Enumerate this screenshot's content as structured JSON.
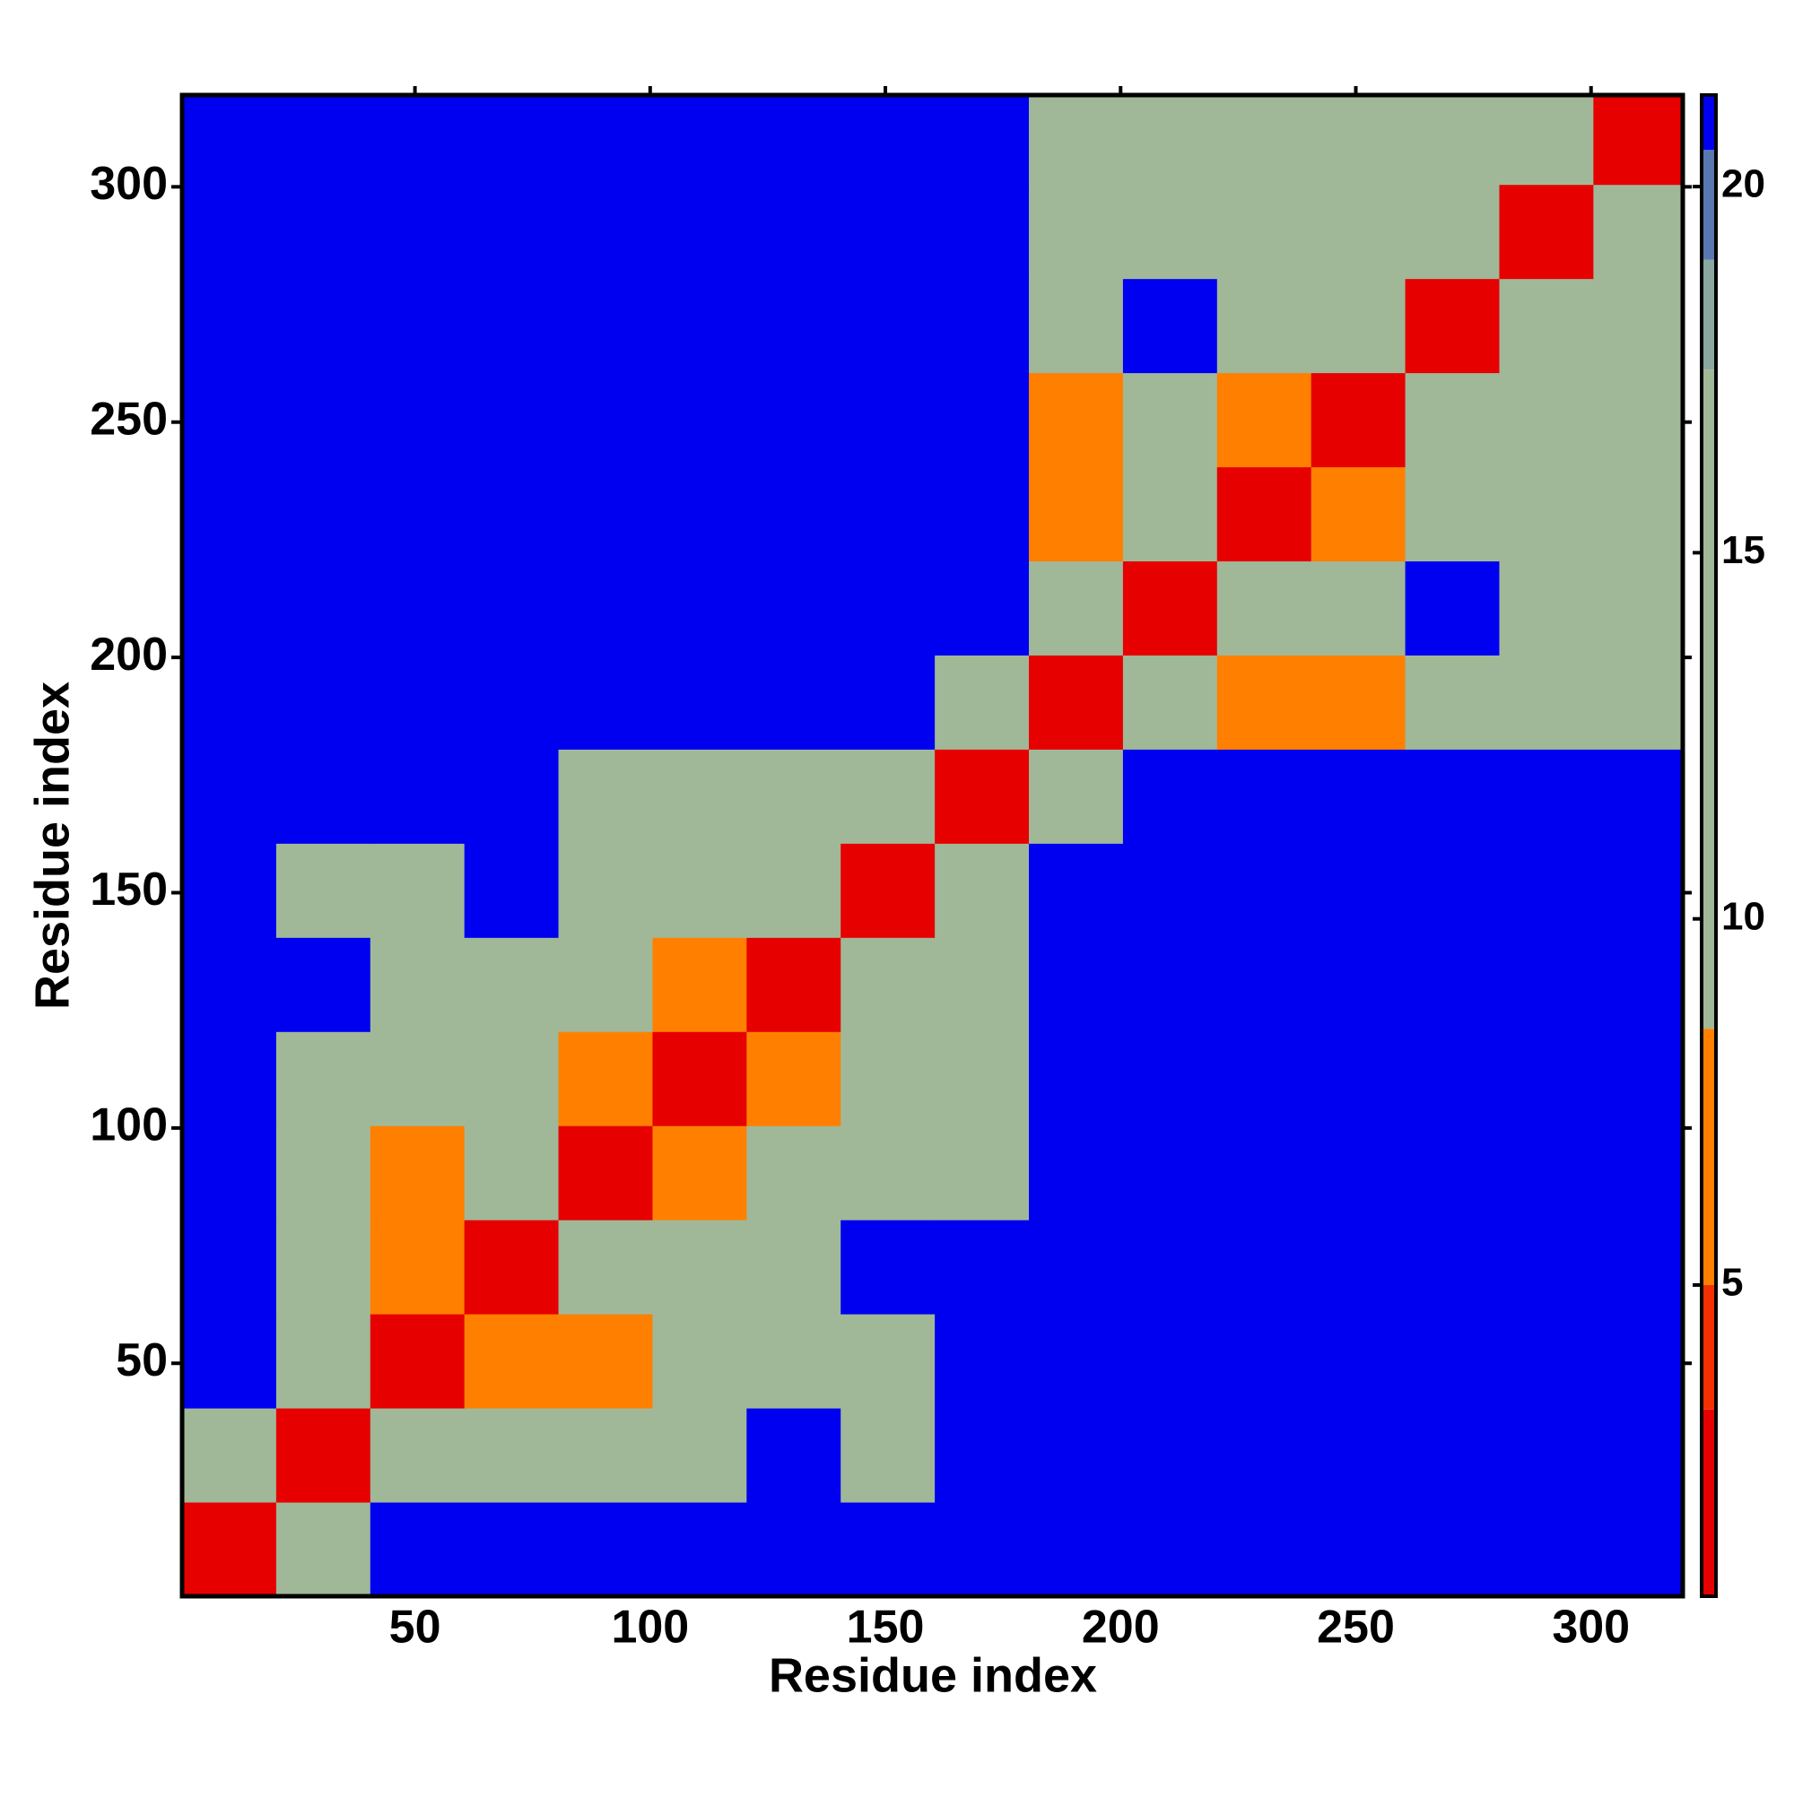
{
  "chart_data": {
    "type": "heatmap",
    "x_label": "Residue index",
    "y_label": "Residue index",
    "bins": [
      0.5,
      20.5,
      40.5,
      60.5,
      80.5,
      100.5,
      120.5,
      140.5,
      160.5,
      180.5,
      200.5,
      220.5,
      240.5,
      260.5,
      280.5,
      300.5,
      319.5
    ],
    "values": [
      [
        3,
        12,
        21,
        21,
        21,
        21,
        21,
        21,
        21,
        21,
        21,
        21,
        21,
        21,
        21,
        21
      ],
      [
        12,
        3,
        12,
        12,
        12,
        12,
        21,
        16,
        21,
        21,
        21,
        21,
        21,
        21,
        21,
        21
      ],
      [
        21,
        12,
        3,
        7,
        7,
        12,
        16,
        16,
        21,
        21,
        21,
        21,
        21,
        21,
        21,
        21
      ],
      [
        21,
        12,
        7,
        3,
        12,
        12,
        16,
        21,
        21,
        21,
        21,
        21,
        21,
        21,
        21,
        21
      ],
      [
        21,
        12,
        7,
        12,
        3,
        7,
        12,
        12,
        12,
        21,
        21,
        21,
        21,
        21,
        21,
        21
      ],
      [
        21,
        12,
        12,
        12,
        7,
        3,
        7,
        12,
        12,
        21,
        21,
        21,
        21,
        21,
        21,
        21
      ],
      [
        21,
        21,
        16,
        16,
        12,
        7,
        3,
        12,
        12,
        21,
        21,
        21,
        21,
        21,
        21,
        21
      ],
      [
        21,
        16,
        16,
        21,
        12,
        12,
        12,
        3,
        12,
        21,
        21,
        21,
        21,
        21,
        21,
        21
      ],
      [
        21,
        21,
        21,
        21,
        12,
        12,
        12,
        12,
        3,
        12,
        21,
        21,
        21,
        21,
        21,
        21
      ],
      [
        21,
        21,
        21,
        21,
        21,
        21,
        21,
        21,
        12,
        3,
        12,
        7,
        7,
        12,
        16,
        16
      ],
      [
        21,
        21,
        21,
        21,
        21,
        21,
        21,
        21,
        21,
        12,
        3,
        12,
        12,
        21,
        12,
        16
      ],
      [
        21,
        21,
        21,
        21,
        21,
        21,
        21,
        21,
        21,
        7,
        12,
        3,
        7,
        12,
        12,
        12
      ],
      [
        21,
        21,
        21,
        21,
        21,
        21,
        21,
        21,
        21,
        7,
        12,
        7,
        3,
        12,
        16,
        16
      ],
      [
        21,
        21,
        21,
        21,
        21,
        21,
        21,
        21,
        21,
        12,
        21,
        12,
        12,
        3,
        12,
        12
      ],
      [
        21,
        21,
        21,
        21,
        21,
        21,
        21,
        21,
        21,
        16,
        12,
        12,
        16,
        12,
        3,
        12
      ],
      [
        21,
        21,
        21,
        21,
        21,
        21,
        21,
        21,
        21,
        16,
        16,
        12,
        16,
        12,
        12,
        3
      ]
    ],
    "xlim": [
      0.5,
      319.5
    ],
    "ylim": [
      0.5,
      319.5
    ],
    "xticks": [
      50,
      100,
      150,
      200,
      250,
      300
    ],
    "yticks": [
      50,
      100,
      150,
      200,
      250,
      300
    ],
    "zlim": [
      0.75,
      21.25
    ],
    "zticks": [
      5,
      10,
      15,
      20
    ],
    "colorscale": [
      [
        0.75,
        "#e60000"
      ],
      [
        3.3,
        "#f23000"
      ],
      [
        5,
        "#ff8000"
      ],
      [
        8.5,
        "#a0b898"
      ],
      [
        17.5,
        "#8aa8a0"
      ],
      [
        19,
        "#5a78b0"
      ],
      [
        20.5,
        "#0000f0"
      ]
    ]
  }
}
